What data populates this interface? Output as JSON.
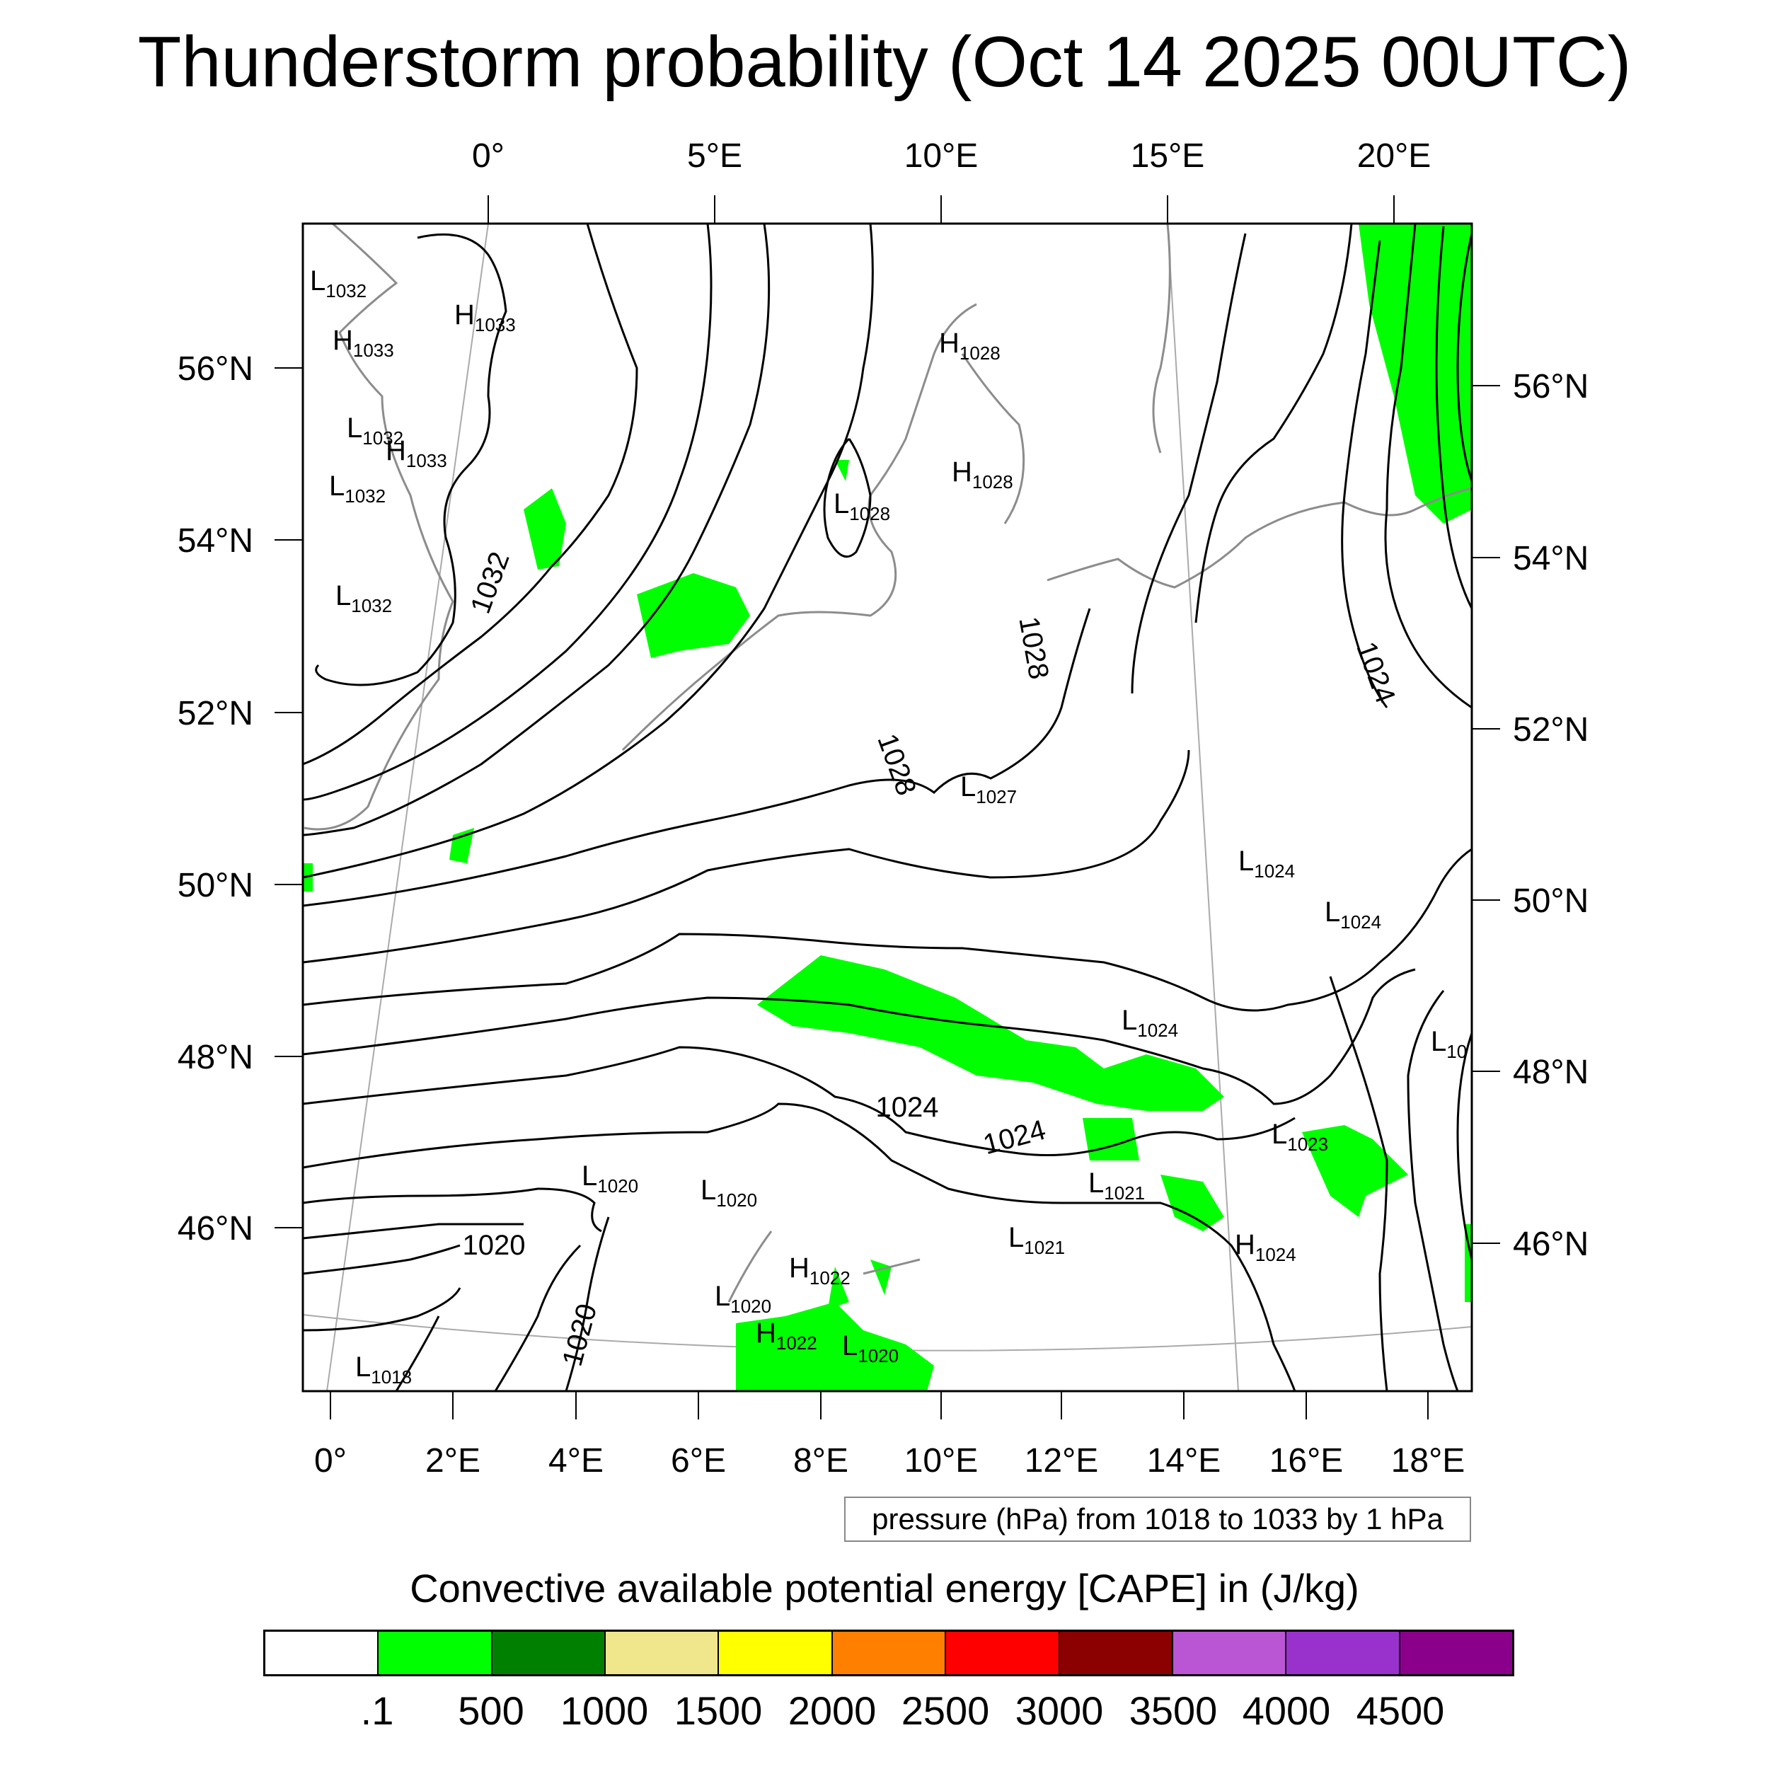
{
  "title": "Thunderstorm probability (Oct 14 2025 00UTC)",
  "top_lon_labels": [
    "0°",
    "5°E",
    "10°E",
    "15°E",
    "20°E"
  ],
  "bottom_lon_labels": [
    "0°",
    "2°E",
    "4°E",
    "6°E",
    "8°E",
    "10°E",
    "12°E",
    "14°E",
    "16°E",
    "18°E"
  ],
  "left_lat_labels": [
    "56°N",
    "54°N",
    "52°N",
    "50°N",
    "48°N",
    "46°N"
  ],
  "right_lat_labels": [
    "56°N",
    "54°N",
    "52°N",
    "50°N",
    "48°N",
    "46°N"
  ],
  "pressure_note": "pressure (hPa) from 1018 to 1033 by 1 hPa",
  "pressure_centers": [
    {
      "type": "L",
      "value": "1032"
    },
    {
      "type": "H",
      "value": "1033"
    },
    {
      "type": "H",
      "value": "1033"
    },
    {
      "type": "L",
      "value": "1032"
    },
    {
      "type": "H",
      "value": "1033"
    },
    {
      "type": "L",
      "value": "1032"
    },
    {
      "type": "L",
      "value": "1032"
    },
    {
      "type": "H",
      "value": "1028"
    },
    {
      "type": "H",
      "value": "1028"
    },
    {
      "type": "L",
      "value": "1028"
    },
    {
      "type": "L",
      "value": "1027"
    },
    {
      "type": "L",
      "value": "1024"
    },
    {
      "type": "L",
      "value": "1024"
    },
    {
      "type": "L",
      "value": "1024"
    },
    {
      "type": "L",
      "value": "10"
    },
    {
      "type": "L",
      "value": "1023"
    },
    {
      "type": "L",
      "value": "1021"
    },
    {
      "type": "H",
      "value": "1024"
    },
    {
      "type": "L",
      "value": "1021"
    },
    {
      "type": "L",
      "value": "1020"
    },
    {
      "type": "L",
      "value": "1020"
    },
    {
      "type": "H",
      "value": "1022"
    },
    {
      "type": "L",
      "value": "1020"
    },
    {
      "type": "H",
      "value": "1022"
    },
    {
      "type": "L",
      "value": "1020"
    },
    {
      "type": "L",
      "value": "1018"
    }
  ],
  "isobar_labels": [
    "1032",
    "1028",
    "1024",
    "1028",
    "1024",
    "1024",
    "1020",
    "1020"
  ],
  "colorbar": {
    "title": "Convective available potential energy [CAPE] in (J/kg)",
    "colors": [
      "#ffffff",
      "#00ff00",
      "#008000",
      "#f0e68c",
      "#ffff00",
      "#ff8000",
      "#ff0000",
      "#8b0000",
      "#ba55d3",
      "#9932cc",
      "#8b008b"
    ],
    "ticks": [
      ".1",
      "500",
      "1000",
      "1500",
      "2000",
      "2500",
      "3000",
      "3500",
      "4000",
      "4500"
    ]
  }
}
